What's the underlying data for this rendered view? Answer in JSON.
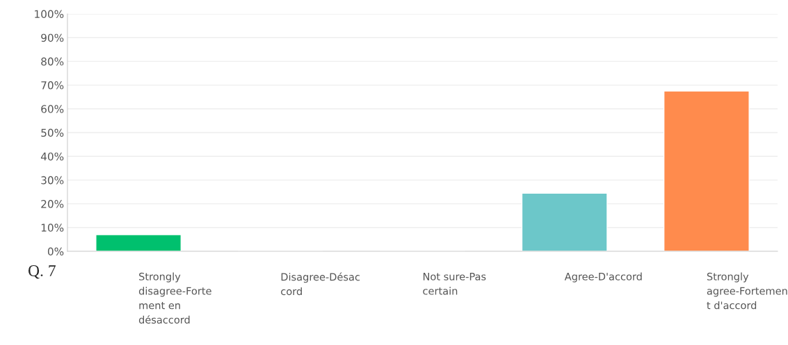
{
  "chart_data": {
    "type": "bar",
    "categories": [
      "Strongly disagree-Fortement en désaccord",
      "Disagree-Désaccord",
      "Not sure-Pas certain",
      "Agree-D'accord",
      "Strongly agree-Fortement d'accord"
    ],
    "values": [
      7,
      0,
      0,
      24.5,
      67.5
    ],
    "colors": [
      "#00c06e",
      null,
      null,
      "#6cc7c9",
      "#ff8b4d"
    ],
    "ylim": [
      0,
      100
    ],
    "yticks": [
      {
        "value": 0,
        "label": "0%"
      },
      {
        "value": 10,
        "label": "10%"
      },
      {
        "value": 20,
        "label": "20%"
      },
      {
        "value": 30,
        "label": "30%"
      },
      {
        "value": 40,
        "label": "40%"
      },
      {
        "value": 50,
        "label": "50%"
      },
      {
        "value": 60,
        "label": "60%"
      },
      {
        "value": 70,
        "label": "70%"
      },
      {
        "value": 80,
        "label": "80%"
      },
      {
        "value": 90,
        "label": "90%"
      },
      {
        "value": 100,
        "label": "100%"
      }
    ],
    "grid": "y",
    "annotations": [
      "Q. 7"
    ]
  }
}
